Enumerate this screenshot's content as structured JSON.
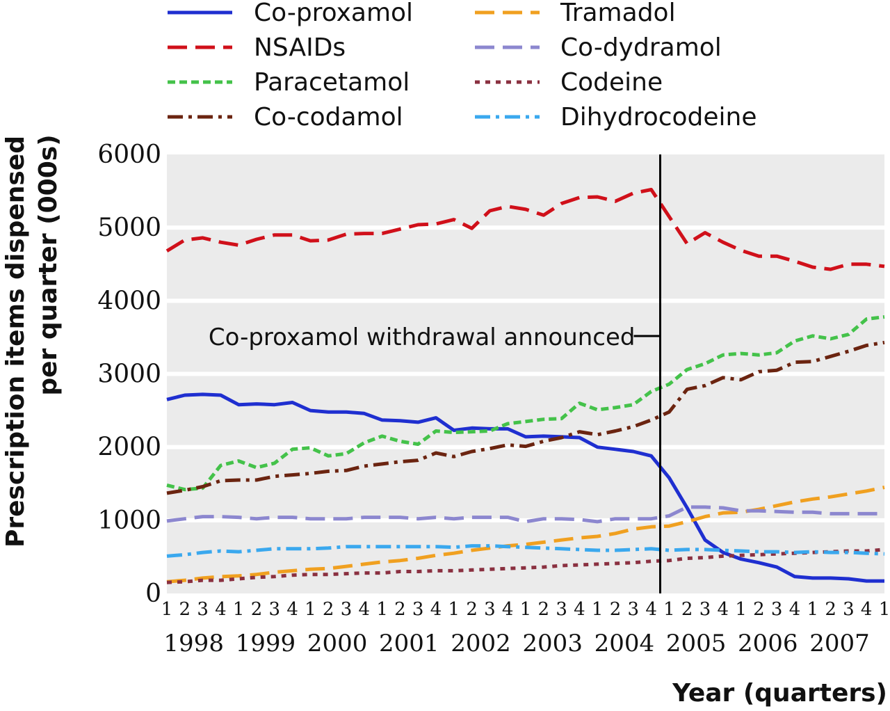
{
  "chart_data": {
    "type": "line",
    "ylabel_line1": "Prescription items dispensed",
    "ylabel_line2": "per quarter (000s)",
    "xlabel": "Year (quarters)",
    "ylim": [
      0,
      6000
    ],
    "yticks": [
      "0",
      "1000",
      "2000",
      "3000",
      "4000",
      "5000",
      "6000"
    ],
    "years": [
      "1998",
      "1999",
      "2000",
      "2001",
      "2002",
      "2003",
      "2004",
      "2005",
      "2006",
      "2007"
    ],
    "quarter_labels": [
      "1",
      "2",
      "3",
      "4"
    ],
    "grid": true,
    "legend_position": "top",
    "annotation": {
      "text": "Co-proxamol withdrawal announced",
      "x_quarter_index": 27.5
    },
    "series": [
      {
        "name": "Co-proxamol",
        "color": "#1f2fd0",
        "dash": "solid",
        "values": [
          2650,
          2710,
          2720,
          2710,
          2580,
          2590,
          2580,
          2610,
          2500,
          2480,
          2480,
          2460,
          2370,
          2360,
          2340,
          2400,
          2230,
          2260,
          2250,
          2250,
          2140,
          2150,
          2140,
          2130,
          2000,
          1970,
          1940,
          1880,
          1580,
          1170,
          730,
          560,
          470,
          420,
          360,
          230,
          210,
          210,
          200,
          170,
          170
        ]
      },
      {
        "name": "NSAIDs",
        "color": "#d0101a",
        "dash": "long",
        "values": [
          4680,
          4830,
          4860,
          4800,
          4760,
          4840,
          4900,
          4900,
          4820,
          4830,
          4910,
          4920,
          4920,
          4980,
          5040,
          5050,
          5110,
          4990,
          5230,
          5290,
          5250,
          5170,
          5330,
          5410,
          5420,
          5360,
          5470,
          5520,
          5150,
          4780,
          4930,
          4800,
          4690,
          4610,
          4610,
          4540,
          4460,
          4430,
          4500,
          4500,
          4470
        ]
      },
      {
        "name": "Paracetamol",
        "color": "#44c24a",
        "dash": "short",
        "values": [
          1480,
          1420,
          1440,
          1750,
          1810,
          1720,
          1780,
          1970,
          1990,
          1880,
          1910,
          2060,
          2150,
          2080,
          2040,
          2220,
          2200,
          2210,
          2220,
          2320,
          2350,
          2380,
          2390,
          2600,
          2510,
          2540,
          2580,
          2760,
          2860,
          3060,
          3140,
          3260,
          3280,
          3260,
          3290,
          3450,
          3520,
          3480,
          3540,
          3750,
          3780
        ]
      },
      {
        "name": "Co-codamol",
        "color": "#6b2410",
        "dash": "dashdot",
        "values": [
          1370,
          1410,
          1460,
          1540,
          1550,
          1550,
          1600,
          1620,
          1640,
          1670,
          1680,
          1740,
          1770,
          1800,
          1820,
          1920,
          1870,
          1940,
          1980,
          2030,
          2010,
          2080,
          2130,
          2210,
          2170,
          2220,
          2280,
          2370,
          2480,
          2790,
          2840,
          2950,
          2920,
          3030,
          3050,
          3160,
          3170,
          3240,
          3310,
          3390,
          3430
        ]
      },
      {
        "name": "Tramadol",
        "color": "#f0a020",
        "dash": "long",
        "values": [
          160,
          180,
          210,
          230,
          240,
          260,
          290,
          310,
          330,
          340,
          370,
          400,
          430,
          450,
          480,
          520,
          550,
          590,
          620,
          650,
          670,
          700,
          730,
          760,
          780,
          820,
          880,
          910,
          920,
          980,
          1050,
          1100,
          1110,
          1150,
          1200,
          1250,
          1290,
          1320,
          1360,
          1400,
          1450
        ]
      },
      {
        "name": "Co-dydramol",
        "color": "#8c87cf",
        "dash": "long",
        "values": [
          990,
          1020,
          1050,
          1050,
          1040,
          1020,
          1040,
          1040,
          1020,
          1020,
          1020,
          1040,
          1040,
          1040,
          1020,
          1040,
          1020,
          1040,
          1040,
          1040,
          980,
          1020,
          1020,
          1010,
          980,
          1020,
          1020,
          1020,
          1060,
          1180,
          1180,
          1170,
          1130,
          1130,
          1120,
          1110,
          1110,
          1090,
          1090,
          1090,
          1090
        ]
      },
      {
        "name": "Codeine",
        "color": "#8a3040",
        "dash": "dot",
        "values": [
          150,
          160,
          180,
          180,
          200,
          220,
          230,
          250,
          260,
          260,
          270,
          280,
          280,
          300,
          300,
          310,
          310,
          320,
          330,
          340,
          350,
          360,
          380,
          390,
          400,
          410,
          420,
          440,
          450,
          480,
          490,
          510,
          520,
          530,
          540,
          550,
          560,
          570,
          580,
          580,
          600
        ]
      },
      {
        "name": "Dihydrocodeine",
        "color": "#3aa8ee",
        "dash": "dashdot",
        "values": [
          510,
          530,
          560,
          580,
          570,
          590,
          610,
          610,
          610,
          620,
          640,
          640,
          640,
          640,
          640,
          640,
          630,
          650,
          650,
          640,
          630,
          620,
          610,
          600,
          590,
          590,
          600,
          610,
          590,
          600,
          600,
          590,
          580,
          570,
          570,
          560,
          570,
          560,
          560,
          550,
          540
        ]
      }
    ]
  }
}
